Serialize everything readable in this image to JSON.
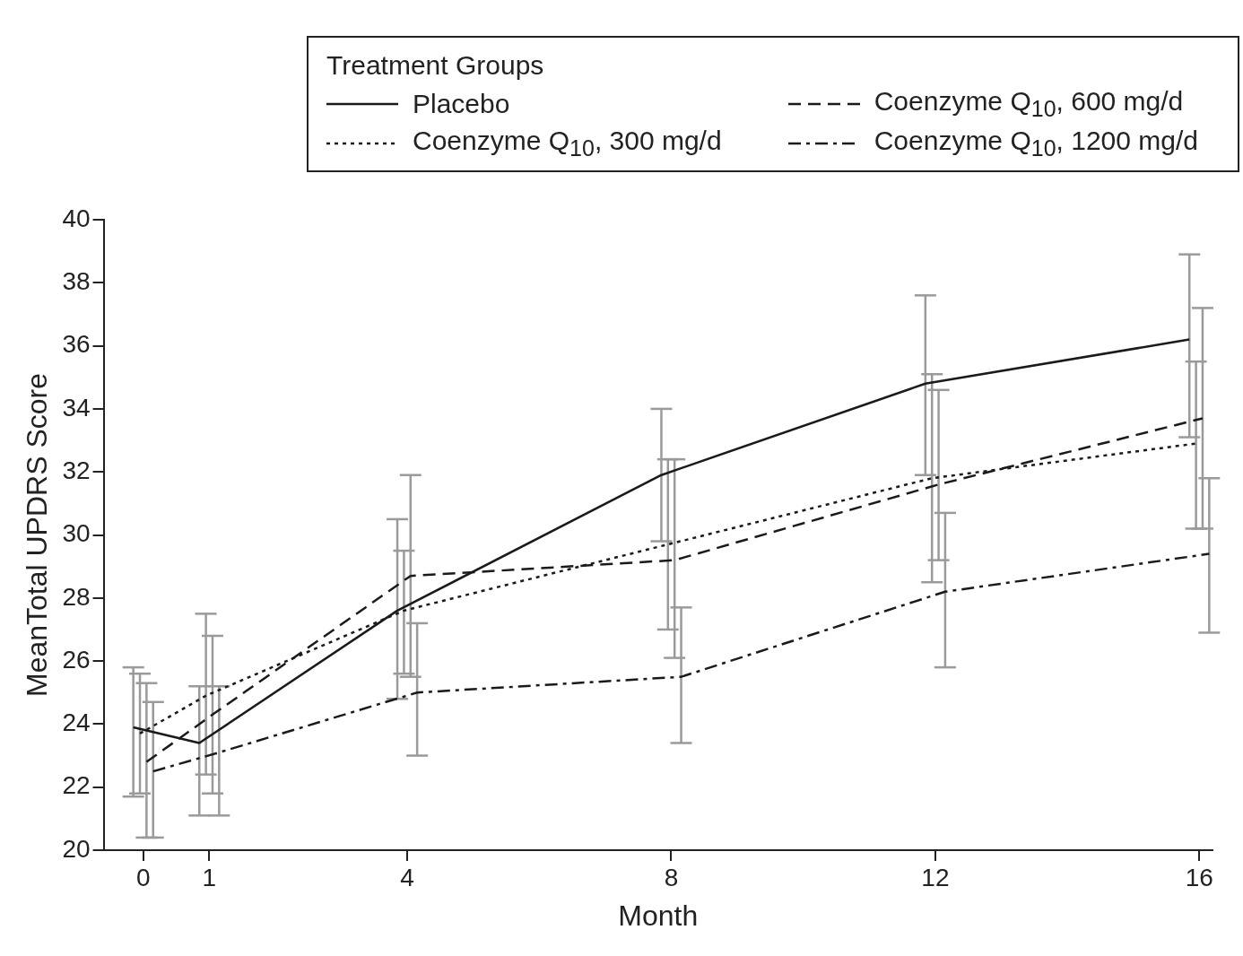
{
  "chart_data": {
    "type": "line",
    "xlabel": "Month",
    "ylabel": "MeanTotal UPDRS Score",
    "legend_title": "Treatment Groups",
    "legend": "top",
    "grid": false,
    "marker": "none",
    "xlim": [
      -0.6,
      16.2
    ],
    "xticks": [
      0,
      1,
      4,
      8,
      12,
      16
    ],
    "ylim": [
      20,
      40
    ],
    "yticks": [
      20,
      22,
      24,
      26,
      28,
      30,
      32,
      34,
      36,
      38,
      40
    ],
    "series": [
      {
        "name": "Placebo",
        "color": "#1a1a1a",
        "line_style": "solid",
        "x": [
          -0.15,
          0.85,
          3.85,
          7.85,
          11.85,
          15.85
        ],
        "values": [
          23.9,
          23.4,
          27.6,
          31.9,
          34.8,
          36.2
        ],
        "errors": [
          [
            21.7,
            25.8
          ],
          [
            21.1,
            25.2
          ],
          [
            24.8,
            30.5
          ],
          [
            29.8,
            34.0
          ],
          [
            31.9,
            37.6
          ],
          [
            33.1,
            38.9
          ]
        ]
      },
      {
        "name": "Coenzyme Q$_{10}$, 300 mg/d",
        "color": "#1a1a1a",
        "line_style": "dotted",
        "x": [
          -0.05,
          0.95,
          3.95,
          7.95,
          11.95,
          15.95
        ],
        "values": [
          23.7,
          24.9,
          27.6,
          29.7,
          31.8,
          32.9
        ],
        "errors": [
          [
            21.8,
            25.6
          ],
          [
            22.4,
            27.5
          ],
          [
            25.6,
            29.5
          ],
          [
            27.0,
            32.4
          ],
          [
            28.5,
            35.1
          ],
          [
            30.2,
            35.5
          ]
        ]
      },
      {
        "name": "Coenzyme Q$_{10}$, 600 mg/d",
        "color": "#1a1a1a",
        "line_style": "dashed",
        "x": [
          0.05,
          1.05,
          4.05,
          8.05,
          12.05,
          16.05
        ],
        "values": [
          22.8,
          24.3,
          28.7,
          29.2,
          31.6,
          33.7
        ],
        "errors": [
          [
            20.4,
            25.3
          ],
          [
            21.8,
            26.8
          ],
          [
            25.5,
            31.9
          ],
          [
            26.1,
            32.4
          ],
          [
            29.2,
            34.6
          ],
          [
            30.2,
            37.2
          ]
        ]
      },
      {
        "name": "Coenzyme Q$_{10}$, 1200 mg/d",
        "color": "#1a1a1a",
        "line_style": "dashdot",
        "x": [
          0.15,
          1.15,
          4.15,
          8.15,
          12.15,
          16.15
        ],
        "values": [
          22.5,
          23.1,
          25.0,
          25.5,
          28.2,
          29.4
        ],
        "errors": [
          [
            20.4,
            24.7
          ],
          [
            21.1,
            25.2
          ],
          [
            23.0,
            27.2
          ],
          [
            23.4,
            27.7
          ],
          [
            25.8,
            30.7
          ],
          [
            26.9,
            31.8
          ]
        ]
      }
    ]
  }
}
